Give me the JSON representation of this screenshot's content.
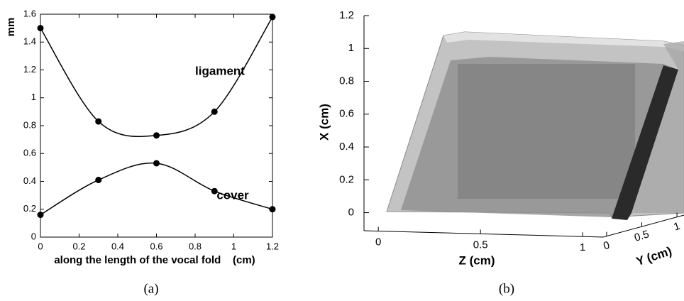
{
  "chart_data": [
    {
      "type": "line",
      "caption": "(a)",
      "xlabel": "along the length of the vocal fold    (cm)",
      "ylabel": "mm",
      "x": [
        0,
        0.3,
        0.6,
        0.9,
        1.2
      ],
      "series": [
        {
          "name": "ligament",
          "color": "#000000",
          "values": [
            1.5,
            0.83,
            0.73,
            0.9,
            1.58
          ]
        },
        {
          "name": "cover",
          "color": "#000000",
          "values": [
            0.16,
            0.41,
            0.53,
            0.33,
            0.2
          ]
        }
      ],
      "xlim": [
        0,
        1.2
      ],
      "xticks": [
        0,
        0.2,
        0.4,
        0.6,
        0.8,
        1,
        1.2
      ],
      "ylim": [
        0,
        1.6
      ],
      "yticks": [
        0,
        0.2,
        0.4,
        0.6,
        0.8,
        1,
        1.2,
        1.4,
        1.6
      ]
    },
    {
      "type": "3d-render",
      "caption": "(b)",
      "xlabel": "Z (cm)",
      "ylabel": "X (cm)",
      "zlabel": "Y (cm)",
      "xlim": [
        -0.07,
        1.1
      ],
      "xticks": [
        0,
        0.5,
        1
      ],
      "ylim": [
        -0.11,
        1.2
      ],
      "yticks": [
        0,
        0.2,
        0.4,
        0.6,
        0.8,
        1,
        1.2
      ],
      "zlim": [
        -0.05,
        1.1
      ],
      "zticks": [
        0,
        0.5,
        1
      ]
    }
  ]
}
